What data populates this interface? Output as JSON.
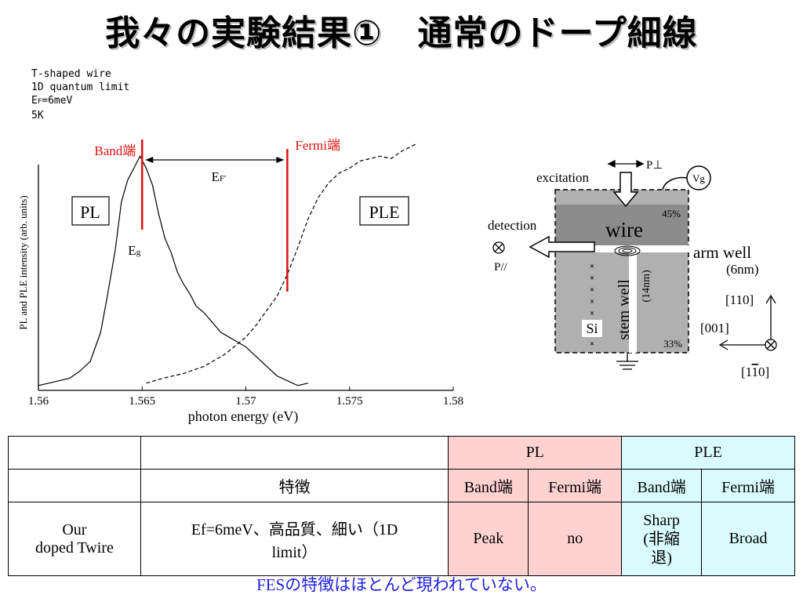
{
  "title": "我々の実験結果①　通常のドープ細線",
  "meta": [
    "T-shaped wire",
    "1D quantum limit",
    "E",
    "5K"
  ],
  "meta_ef": {
    "sub": "F",
    "value": "=6meV"
  },
  "chart_data": {
    "type": "line",
    "xlabel": "photon energy (eV)",
    "ylabel": "PL and PLE intensity (arb. units)",
    "xlim": [
      1.56,
      1.58
    ],
    "ylim": [
      0,
      1
    ],
    "xticks": [
      "1.56",
      "1.565",
      "1.57",
      "1.575",
      "1.58"
    ],
    "series": [
      {
        "name": "PL",
        "style": "solid",
        "x": [
          1.56,
          1.5605,
          1.561,
          1.5615,
          1.562,
          1.5625,
          1.563,
          1.5633,
          1.5637,
          1.564,
          1.5643,
          1.5646,
          1.5649,
          1.5652,
          1.5655,
          1.5658,
          1.5661,
          1.5664,
          1.5667,
          1.567,
          1.5673,
          1.5676,
          1.568,
          1.5684,
          1.5688,
          1.5692,
          1.5696,
          1.57,
          1.5705,
          1.571,
          1.5715,
          1.572,
          1.5725,
          1.573
        ],
        "y": [
          0.02,
          0.03,
          0.04,
          0.05,
          0.08,
          0.12,
          0.24,
          0.38,
          0.58,
          0.78,
          0.87,
          0.92,
          0.97,
          0.92,
          0.85,
          0.73,
          0.63,
          0.57,
          0.49,
          0.44,
          0.4,
          0.35,
          0.32,
          0.28,
          0.24,
          0.22,
          0.2,
          0.18,
          0.14,
          0.1,
          0.06,
          0.04,
          0.02,
          0.03
        ]
      },
      {
        "name": "PLE",
        "style": "dashed",
        "x": [
          1.5652,
          1.566,
          1.567,
          1.568,
          1.569,
          1.57,
          1.5705,
          1.571,
          1.5715,
          1.572,
          1.5725,
          1.573,
          1.5735,
          1.574,
          1.5745,
          1.575,
          1.5755,
          1.576,
          1.5765,
          1.577,
          1.5775,
          1.5782
        ],
        "y": [
          0.03,
          0.05,
          0.07,
          0.1,
          0.15,
          0.22,
          0.27,
          0.33,
          0.39,
          0.48,
          0.59,
          0.71,
          0.8,
          0.86,
          0.9,
          0.92,
          0.95,
          0.96,
          0.97,
          0.96,
          0.99,
          1.02
        ]
      }
    ],
    "annotations": {
      "band_label": "Band端",
      "fermi_label": "Fermi端",
      "band_x": 1.565,
      "fermi_x": 1.572,
      "ef_label": "E",
      "ef_sub": "F'",
      "eg_label": "E",
      "eg_sub": "g",
      "pl_box": "PL",
      "ple_box": "PLE",
      "line_color": "#e01010"
    }
  },
  "diagram": {
    "excitation": "excitation",
    "p_perp": "P⊥",
    "vg": "Vg",
    "detection": "detection",
    "p_par": "P//",
    "wire": "wire",
    "pct_top": "45%",
    "arm_well": "arm well",
    "arm_well_nm": "(6nm)",
    "stem_well": "stem well",
    "stem_well_nm": "(14nm)",
    "si": "Si",
    "pct_bottom": "33%",
    "dir_110": "[110]",
    "dir_001": "[001]",
    "dir_1m10_a": "[1",
    "dir_1m10_b": "1",
    "dir_1m10_c": "0]"
  },
  "table": {
    "groups": [
      "PL",
      "PLE"
    ],
    "feature_header": "特徴",
    "sub_headers": [
      "Band端",
      "Fermi端",
      "Band端",
      "Fermi端"
    ],
    "row": {
      "name_line1": "Our",
      "name_line2": "doped Twire",
      "feature_line1": "Ef=6meV、高品質、細い（1D",
      "feature_line2": "limit）",
      "pl_band": "Peak",
      "pl_fermi": "no",
      "ple_band_1": "Sharp",
      "ple_band_2": "(非縮",
      "ple_band_3": "退)",
      "ple_fermi": "Broad"
    },
    "colors": {
      "pl": "#ffd2d2",
      "ple": "#d9fbfd"
    }
  },
  "footer": "FESの特徴はほとんど現われていない。"
}
